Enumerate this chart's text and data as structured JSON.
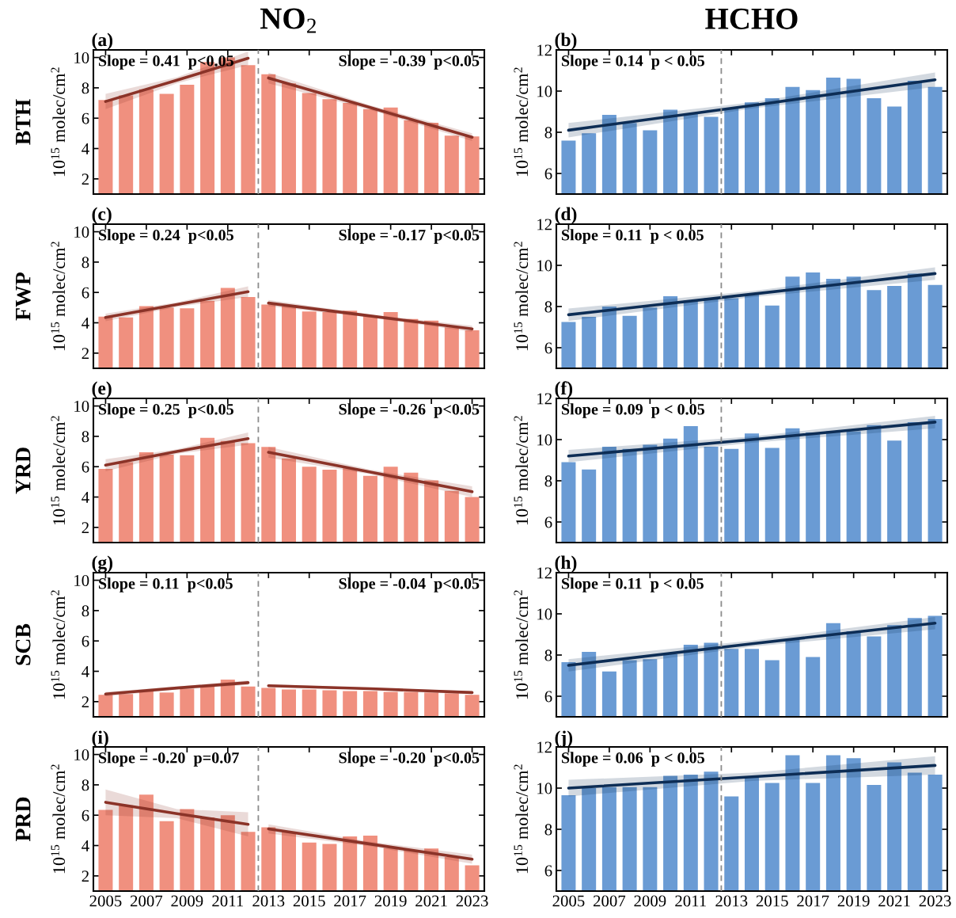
{
  "chart_data": [
    {
      "type": "bar",
      "title": "(a)",
      "ylabel": "10$^{15}$ molec/cm$^{2}$",
      "annotations": [
        "Slope = 0.41  p<0.05",
        "Slope = -0.39  p<0.05",
        "BTH",
        "NO$_{2}$"
      ],
      "x": [
        2005,
        2006,
        2007,
        2008,
        2009,
        2010,
        2011,
        2012,
        2013,
        2014,
        2015,
        2016,
        2017,
        2018,
        2019,
        2020,
        2021,
        2022,
        2023
      ],
      "xlim": [
        2004.4,
        2023.6
      ],
      "xticks": [
        2005,
        2007,
        2009,
        2011,
        2013,
        2015,
        2017,
        2019,
        2021,
        2023
      ],
      "ylim": [
        1,
        10.5
      ],
      "yticks": [
        2,
        4,
        6,
        8,
        10
      ],
      "tick_labels": "y",
      "ref_lines": [
        {
          "axis": "x",
          "value": 2012.5,
          "color": "#8c8c8c",
          "line_style": "dashed"
        }
      ],
      "series": [
        {
          "color": "#f0907f",
          "values": [
            7.2,
            7.5,
            7.9,
            7.6,
            8.2,
            9.7,
            10.0,
            9.5,
            8.9,
            8.3,
            7.65,
            7.25,
            7.0,
            6.6,
            6.7,
            5.85,
            5.7,
            4.85,
            4.8
          ]
        },
        {
          "type": "line",
          "color": "#8b3328",
          "x": [
            2005,
            2008.5,
            2012
          ],
          "values": [
            7.1,
            8.5,
            9.95
          ],
          "lower": [
            6.6,
            8.3,
            9.5
          ],
          "upper": [
            7.6,
            8.7,
            10.4
          ]
        },
        {
          "type": "line",
          "color": "#8b3328",
          "x": [
            2013,
            2018,
            2023
          ],
          "values": [
            8.65,
            6.7,
            4.75
          ],
          "lower": [
            8.3,
            6.55,
            4.5
          ],
          "upper": [
            9.0,
            6.85,
            5.0
          ]
        }
      ]
    },
    {
      "type": "bar",
      "title": "(b)",
      "ylabel": "10$^{15}$ molec/cm$^{2}$",
      "annotations": [
        "Slope = 0.14  p < 0.05",
        "HCHO"
      ],
      "x": [
        2005,
        2006,
        2007,
        2008,
        2009,
        2010,
        2011,
        2012,
        2013,
        2014,
        2015,
        2016,
        2017,
        2018,
        2019,
        2020,
        2021,
        2022,
        2023
      ],
      "xlim": [
        2004.4,
        2023.6
      ],
      "xticks": [
        2005,
        2007,
        2009,
        2011,
        2013,
        2015,
        2017,
        2019,
        2021,
        2023
      ],
      "ylim": [
        5,
        12
      ],
      "yticks": [
        6,
        8,
        10,
        12
      ],
      "tick_labels": "y",
      "ref_lines": [
        {
          "axis": "x",
          "value": 2012.5,
          "color": "#8c8c8c",
          "line_style": "dashed"
        }
      ],
      "series": [
        {
          "color": "#6a9bd4",
          "values": [
            7.6,
            7.95,
            8.85,
            8.45,
            8.1,
            9.1,
            8.9,
            8.75,
            9.15,
            9.45,
            9.65,
            10.2,
            10.05,
            10.65,
            10.6,
            9.65,
            9.25,
            10.5,
            10.2
          ]
        },
        {
          "type": "line",
          "color": "#0d2d55",
          "x": [
            2005,
            2014,
            2023
          ],
          "values": [
            8.1,
            9.3,
            10.55
          ],
          "lower": [
            7.75,
            9.15,
            10.2
          ],
          "upper": [
            8.45,
            9.45,
            10.9
          ]
        }
      ]
    },
    {
      "type": "bar",
      "title": "(c)",
      "ylabel": "10$^{15}$ molec/cm$^{2}$",
      "annotations": [
        "Slope = 0.24  p<0.05",
        "Slope = -0.17  p<0.05",
        "FWP"
      ],
      "x": [
        2005,
        2006,
        2007,
        2008,
        2009,
        2010,
        2011,
        2012,
        2013,
        2014,
        2015,
        2016,
        2017,
        2018,
        2019,
        2020,
        2021,
        2022,
        2023
      ],
      "xlim": [
        2004.4,
        2023.6
      ],
      "xticks": [
        2005,
        2007,
        2009,
        2011,
        2013,
        2015,
        2017,
        2019,
        2021,
        2023
      ],
      "ylim": [
        1,
        10.5
      ],
      "yticks": [
        2,
        4,
        6,
        8,
        10
      ],
      "tick_labels": "y",
      "ref_lines": [
        {
          "axis": "x",
          "value": 2012.5,
          "color": "#8c8c8c",
          "line_style": "dashed"
        }
      ],
      "series": [
        {
          "color": "#f0907f",
          "values": [
            4.4,
            4.35,
            5.1,
            5.0,
            4.95,
            5.45,
            6.3,
            5.7,
            5.2,
            5.1,
            4.75,
            4.7,
            4.8,
            4.5,
            4.7,
            4.25,
            4.15,
            3.7,
            3.5
          ]
        },
        {
          "type": "line",
          "color": "#8b3328",
          "x": [
            2005,
            2008.5,
            2012
          ],
          "values": [
            4.35,
            5.2,
            6.05
          ],
          "lower": [
            4.1,
            5.05,
            5.7
          ],
          "upper": [
            4.6,
            5.35,
            6.4
          ]
        },
        {
          "type": "line",
          "color": "#8b3328",
          "x": [
            2013,
            2018,
            2023
          ],
          "values": [
            5.3,
            4.45,
            3.6
          ],
          "lower": [
            5.1,
            4.35,
            3.4
          ],
          "upper": [
            5.5,
            4.55,
            3.8
          ]
        }
      ]
    },
    {
      "type": "bar",
      "title": "(d)",
      "ylabel": "10$^{15}$ molec/cm$^{2}$",
      "annotations": [
        "Slope = 0.11  p < 0.05"
      ],
      "x": [
        2005,
        2006,
        2007,
        2008,
        2009,
        2010,
        2011,
        2012,
        2013,
        2014,
        2015,
        2016,
        2017,
        2018,
        2019,
        2020,
        2021,
        2022,
        2023
      ],
      "xlim": [
        2004.4,
        2023.6
      ],
      "xticks": [
        2005,
        2007,
        2009,
        2011,
        2013,
        2015,
        2017,
        2019,
        2021,
        2023
      ],
      "ylim": [
        5,
        12
      ],
      "yticks": [
        6,
        8,
        10,
        12
      ],
      "tick_labels": "y",
      "ref_lines": [
        {
          "axis": "x",
          "value": 2012.5,
          "color": "#8c8c8c",
          "line_style": "dashed"
        }
      ],
      "series": [
        {
          "color": "#6a9bd4",
          "values": [
            7.25,
            7.5,
            8.0,
            7.55,
            7.95,
            8.5,
            8.3,
            8.4,
            8.4,
            8.6,
            8.05,
            9.45,
            9.65,
            9.35,
            9.45,
            8.8,
            9.0,
            9.6,
            9.05
          ]
        },
        {
          "type": "line",
          "color": "#0d2d55",
          "x": [
            2005,
            2014,
            2023
          ],
          "values": [
            7.6,
            8.6,
            9.6
          ],
          "lower": [
            7.3,
            8.45,
            9.3
          ],
          "upper": [
            7.9,
            8.75,
            9.9
          ]
        }
      ]
    },
    {
      "type": "bar",
      "title": "(e)",
      "ylabel": "10$^{15}$ molec/cm$^{2}$",
      "annotations": [
        "Slope = 0.25  p<0.05",
        "Slope = -0.26  p<0.05",
        "YRD"
      ],
      "x": [
        2005,
        2006,
        2007,
        2008,
        2009,
        2010,
        2011,
        2012,
        2013,
        2014,
        2015,
        2016,
        2017,
        2018,
        2019,
        2020,
        2021,
        2022,
        2023
      ],
      "xlim": [
        2004.4,
        2023.6
      ],
      "xticks": [
        2005,
        2007,
        2009,
        2011,
        2013,
        2015,
        2017,
        2019,
        2021,
        2023
      ],
      "ylim": [
        1,
        10.5
      ],
      "yticks": [
        2,
        4,
        6,
        8,
        10
      ],
      "tick_labels": "y",
      "ref_lines": [
        {
          "axis": "x",
          "value": 2012.5,
          "color": "#8c8c8c",
          "line_style": "dashed"
        }
      ],
      "series": [
        {
          "color": "#f0907f",
          "values": [
            5.85,
            6.3,
            6.95,
            6.8,
            6.75,
            7.9,
            7.7,
            7.55,
            7.3,
            6.55,
            6.0,
            5.8,
            5.9,
            5.4,
            6.0,
            5.6,
            5.1,
            4.4,
            4.0
          ]
        },
        {
          "type": "line",
          "color": "#8b3328",
          "x": [
            2005,
            2008.5,
            2012
          ],
          "values": [
            6.1,
            7.0,
            7.85
          ],
          "lower": [
            5.7,
            6.85,
            7.45
          ],
          "upper": [
            6.5,
            7.15,
            8.25
          ]
        },
        {
          "type": "line",
          "color": "#8b3328",
          "x": [
            2013,
            2018,
            2023
          ],
          "values": [
            6.95,
            5.65,
            4.35
          ],
          "lower": [
            6.6,
            5.5,
            4.0
          ],
          "upper": [
            7.3,
            5.8,
            4.7
          ]
        }
      ]
    },
    {
      "type": "bar",
      "title": "(f)",
      "ylabel": "10$^{15}$ molec/cm$^{2}$",
      "annotations": [
        "Slope = 0.09  p < 0.05"
      ],
      "x": [
        2005,
        2006,
        2007,
        2008,
        2009,
        2010,
        2011,
        2012,
        2013,
        2014,
        2015,
        2016,
        2017,
        2018,
        2019,
        2020,
        2021,
        2022,
        2023
      ],
      "xlim": [
        2004.4,
        2023.6
      ],
      "xticks": [
        2005,
        2007,
        2009,
        2011,
        2013,
        2015,
        2017,
        2019,
        2021,
        2023
      ],
      "ylim": [
        5,
        12
      ],
      "yticks": [
        6,
        8,
        10,
        12
      ],
      "tick_labels": "y",
      "ref_lines": [
        {
          "axis": "x",
          "value": 2012.5,
          "color": "#8c8c8c",
          "line_style": "dashed"
        }
      ],
      "series": [
        {
          "color": "#6a9bd4",
          "values": [
            8.9,
            8.55,
            9.65,
            9.55,
            9.75,
            10.05,
            10.65,
            9.65,
            9.55,
            10.3,
            9.6,
            10.55,
            10.35,
            10.4,
            10.4,
            10.7,
            9.95,
            10.85,
            11.0
          ]
        },
        {
          "type": "line",
          "color": "#0d2d55",
          "x": [
            2005,
            2014,
            2023
          ],
          "values": [
            9.2,
            10.0,
            10.85
          ],
          "lower": [
            8.9,
            9.85,
            10.55
          ],
          "upper": [
            9.5,
            10.15,
            11.15
          ]
        }
      ]
    },
    {
      "type": "bar",
      "title": "(g)",
      "ylabel": "10$^{15}$ molec/cm$^{2}$",
      "annotations": [
        "Slope = 0.11  p<0.05",
        "Slope = -0.04  p<0.05",
        "SCB"
      ],
      "x": [
        2005,
        2006,
        2007,
        2008,
        2009,
        2010,
        2011,
        2012,
        2013,
        2014,
        2015,
        2016,
        2017,
        2018,
        2019,
        2020,
        2021,
        2022,
        2023
      ],
      "xlim": [
        2004.4,
        2023.6
      ],
      "xticks": [
        2005,
        2007,
        2009,
        2011,
        2013,
        2015,
        2017,
        2019,
        2021,
        2023
      ],
      "ylim": [
        1,
        10.5
      ],
      "yticks": [
        2,
        4,
        6,
        8,
        10
      ],
      "tick_labels": "y",
      "ref_lines": [
        {
          "axis": "x",
          "value": 2012.5,
          "color": "#8c8c8c",
          "line_style": "dashed"
        }
      ],
      "series": [
        {
          "color": "#f0907f",
          "values": [
            2.45,
            2.5,
            2.7,
            2.6,
            2.85,
            3.0,
            3.45,
            3.0,
            2.9,
            2.8,
            2.8,
            2.75,
            2.7,
            2.7,
            2.65,
            2.65,
            2.6,
            2.55,
            2.45
          ]
        },
        {
          "type": "line",
          "color": "#8b3328",
          "x": [
            2005,
            2008.5,
            2012
          ],
          "values": [
            2.5,
            2.9,
            3.25
          ],
          "lower": [
            2.35,
            2.8,
            3.1
          ],
          "upper": [
            2.65,
            3.0,
            3.4
          ]
        },
        {
          "type": "line",
          "color": "#8b3328",
          "x": [
            2013,
            2018,
            2023
          ],
          "values": [
            3.05,
            2.85,
            2.6
          ],
          "lower": [
            2.95,
            2.8,
            2.5
          ],
          "upper": [
            3.15,
            2.9,
            2.7
          ]
        }
      ]
    },
    {
      "type": "bar",
      "title": "(h)",
      "ylabel": "10$^{15}$ molec/cm$^{2}$",
      "annotations": [
        "Slope = 0.11  p < 0.05"
      ],
      "x": [
        2005,
        2006,
        2007,
        2008,
        2009,
        2010,
        2011,
        2012,
        2013,
        2014,
        2015,
        2016,
        2017,
        2018,
        2019,
        2020,
        2021,
        2022,
        2023
      ],
      "xlim": [
        2004.4,
        2023.6
      ],
      "xticks": [
        2005,
        2007,
        2009,
        2011,
        2013,
        2015,
        2017,
        2019,
        2021,
        2023
      ],
      "ylim": [
        5,
        12
      ],
      "yticks": [
        6,
        8,
        10,
        12
      ],
      "tick_labels": "y",
      "ref_lines": [
        {
          "axis": "x",
          "value": 2012.5,
          "color": "#8c8c8c",
          "line_style": "dashed"
        }
      ],
      "series": [
        {
          "color": "#6a9bd4",
          "values": [
            7.65,
            8.15,
            7.2,
            7.75,
            7.8,
            8.05,
            8.5,
            8.6,
            8.3,
            8.3,
            7.75,
            8.75,
            7.9,
            9.55,
            9.15,
            8.9,
            9.45,
            9.8,
            9.9
          ]
        },
        {
          "type": "line",
          "color": "#0d2d55",
          "x": [
            2005,
            2014,
            2023
          ],
          "values": [
            7.5,
            8.55,
            9.55
          ],
          "lower": [
            7.2,
            8.4,
            9.25
          ],
          "upper": [
            7.8,
            8.7,
            9.85
          ]
        }
      ]
    },
    {
      "type": "bar",
      "title": "(i)",
      "ylabel": "10$^{15}$ molec/cm$^{2}$",
      "annotations": [
        "Slope = -0.20  p=0.07",
        "Slope = -0.20  p<0.05",
        "PRD"
      ],
      "x": [
        2005,
        2006,
        2007,
        2008,
        2009,
        2010,
        2011,
        2012,
        2013,
        2014,
        2015,
        2016,
        2017,
        2018,
        2019,
        2020,
        2021,
        2022,
        2023
      ],
      "xlim": [
        2004.4,
        2023.6
      ],
      "xticks": [
        2005,
        2007,
        2009,
        2011,
        2013,
        2015,
        2017,
        2019,
        2021,
        2023
      ],
      "ylim": [
        1,
        10.5
      ],
      "yticks": [
        2,
        4,
        6,
        8,
        10
      ],
      "ref_lines": [
        {
          "axis": "x",
          "value": 2012.5,
          "color": "#8c8c8c",
          "line_style": "dashed"
        }
      ],
      "series": [
        {
          "color": "#f0907f",
          "values": [
            6.35,
            6.65,
            7.35,
            5.6,
            6.4,
            5.85,
            6.0,
            4.9,
            5.2,
            4.9,
            4.2,
            4.1,
            4.6,
            4.65,
            3.85,
            3.7,
            3.8,
            3.25,
            2.7
          ]
        },
        {
          "type": "line",
          "color": "#8b3328",
          "x": [
            2005,
            2008.5,
            2012
          ],
          "values": [
            6.85,
            6.1,
            5.4
          ],
          "lower": [
            6.0,
            5.8,
            4.6
          ],
          "upper": [
            7.7,
            6.4,
            6.2
          ]
        },
        {
          "type": "line",
          "color": "#8b3328",
          "x": [
            2013,
            2018,
            2023
          ],
          "values": [
            5.1,
            4.1,
            3.1
          ],
          "lower": [
            4.8,
            3.95,
            2.8
          ],
          "upper": [
            5.4,
            4.25,
            3.4
          ]
        }
      ]
    },
    {
      "type": "bar",
      "title": "(j)",
      "ylabel": "10$^{15}$ molec/cm$^{2}$",
      "annotations": [
        "Slope = 0.06  p < 0.05"
      ],
      "x": [
        2005,
        2006,
        2007,
        2008,
        2009,
        2010,
        2011,
        2012,
        2013,
        2014,
        2015,
        2016,
        2017,
        2018,
        2019,
        2020,
        2021,
        2022,
        2023
      ],
      "xlim": [
        2004.4,
        2023.6
      ],
      "xticks": [
        2005,
        2007,
        2009,
        2011,
        2013,
        2015,
        2017,
        2019,
        2021,
        2023
      ],
      "ylim": [
        5,
        12
      ],
      "yticks": [
        6,
        8,
        10,
        12
      ],
      "ref_lines": [
        {
          "axis": "x",
          "value": 2012.5,
          "color": "#8c8c8c",
          "line_style": "dashed"
        }
      ],
      "series": [
        {
          "color": "#6a9bd4",
          "values": [
            9.65,
            10.0,
            10.05,
            10.05,
            10.05,
            10.6,
            10.65,
            10.8,
            9.6,
            10.5,
            10.25,
            11.6,
            10.25,
            11.6,
            11.45,
            10.15,
            11.25,
            10.75,
            10.65
          ]
        },
        {
          "type": "line",
          "color": "#0d2d55",
          "x": [
            2005,
            2014,
            2023
          ],
          "values": [
            10.0,
            10.55,
            11.1
          ],
          "lower": [
            9.6,
            10.35,
            10.65
          ],
          "upper": [
            10.4,
            10.75,
            11.55
          ]
        }
      ]
    }
  ]
}
